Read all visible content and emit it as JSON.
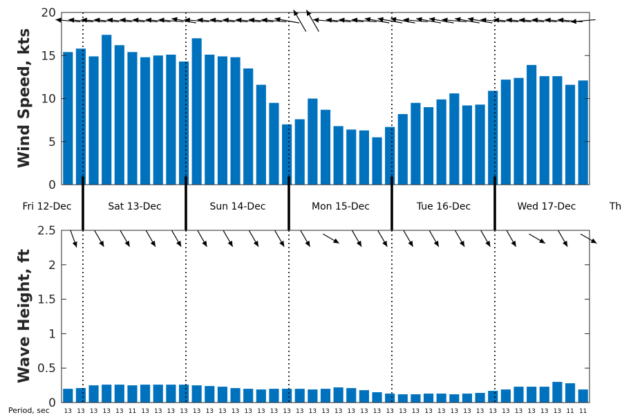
{
  "chart_data": [
    {
      "type": "bar",
      "ylabel": "Wind Speed, kts",
      "ylim": [
        0,
        20
      ],
      "yticks": [
        "0",
        "5",
        "10",
        "15",
        "20"
      ],
      "color": "#0072BD",
      "values": [
        15.4,
        15.8,
        14.9,
        17.4,
        16.2,
        15.4,
        14.8,
        15.0,
        15.1,
        14.3,
        17.0,
        15.1,
        14.9,
        14.8,
        13.5,
        11.6,
        9.5,
        7.0,
        7.6,
        10.0,
        8.7,
        6.8,
        6.4,
        6.3,
        5.5,
        6.7,
        8.2,
        9.5,
        9.0,
        9.9,
        10.6,
        9.2,
        9.3,
        10.9,
        12.2,
        12.4,
        13.9,
        12.6,
        12.6,
        11.6,
        12.1
      ],
      "wind_direction_deg": [
        95,
        95,
        95,
        95,
        95,
        95,
        95,
        95,
        95,
        100,
        95,
        95,
        95,
        95,
        95,
        95,
        95,
        100,
        150,
        150,
        95,
        95,
        95,
        95,
        100,
        100,
        100,
        95,
        100,
        100,
        95,
        100,
        100,
        95,
        95,
        95,
        95,
        95,
        95,
        95,
        85
      ]
    },
    {
      "type": "bar",
      "ylabel": "Wave Height, ft",
      "ylim": [
        0,
        2.5
      ],
      "yticks": [
        "0",
        "0.5",
        "1",
        "1.5",
        "2",
        "2.5"
      ],
      "color": "#0072BD",
      "values": [
        0.2,
        0.21,
        0.25,
        0.26,
        0.26,
        0.25,
        0.26,
        0.26,
        0.26,
        0.26,
        0.25,
        0.24,
        0.23,
        0.21,
        0.2,
        0.19,
        0.2,
        0.2,
        0.2,
        0.19,
        0.2,
        0.22,
        0.21,
        0.18,
        0.15,
        0.13,
        0.12,
        0.12,
        0.13,
        0.13,
        0.12,
        0.13,
        0.14,
        0.17,
        0.19,
        0.23,
        0.23,
        0.23,
        0.3,
        0.28,
        0.19
      ],
      "wave_direction_deg": [
        340,
        330,
        330,
        330,
        330,
        330,
        330,
        330,
        330,
        330,
        300,
        330,
        330,
        330,
        330,
        330,
        330,
        330,
        300,
        330,
        300
      ],
      "period_label": "Period, sec",
      "periods": [
        "13",
        "13",
        "13",
        "13",
        "13",
        "11",
        "13",
        "13",
        "13",
        "13",
        "13",
        "13",
        "13",
        "13",
        "13",
        "13",
        "13",
        "13",
        "13",
        "13",
        "13",
        "13",
        "13",
        "13",
        "13",
        "13",
        "13",
        "13",
        "13",
        "13",
        "13",
        "13",
        "13",
        "13",
        "13",
        "13",
        "13",
        "13",
        "13",
        "11",
        "11"
      ]
    }
  ],
  "days": [
    "Fri 12-Dec",
    "Sat 13-Dec",
    "Sun 14-Dec",
    "Mon 15-Dec",
    "Tue 16-Dec",
    "Wed 17-Dec",
    "Thu"
  ]
}
